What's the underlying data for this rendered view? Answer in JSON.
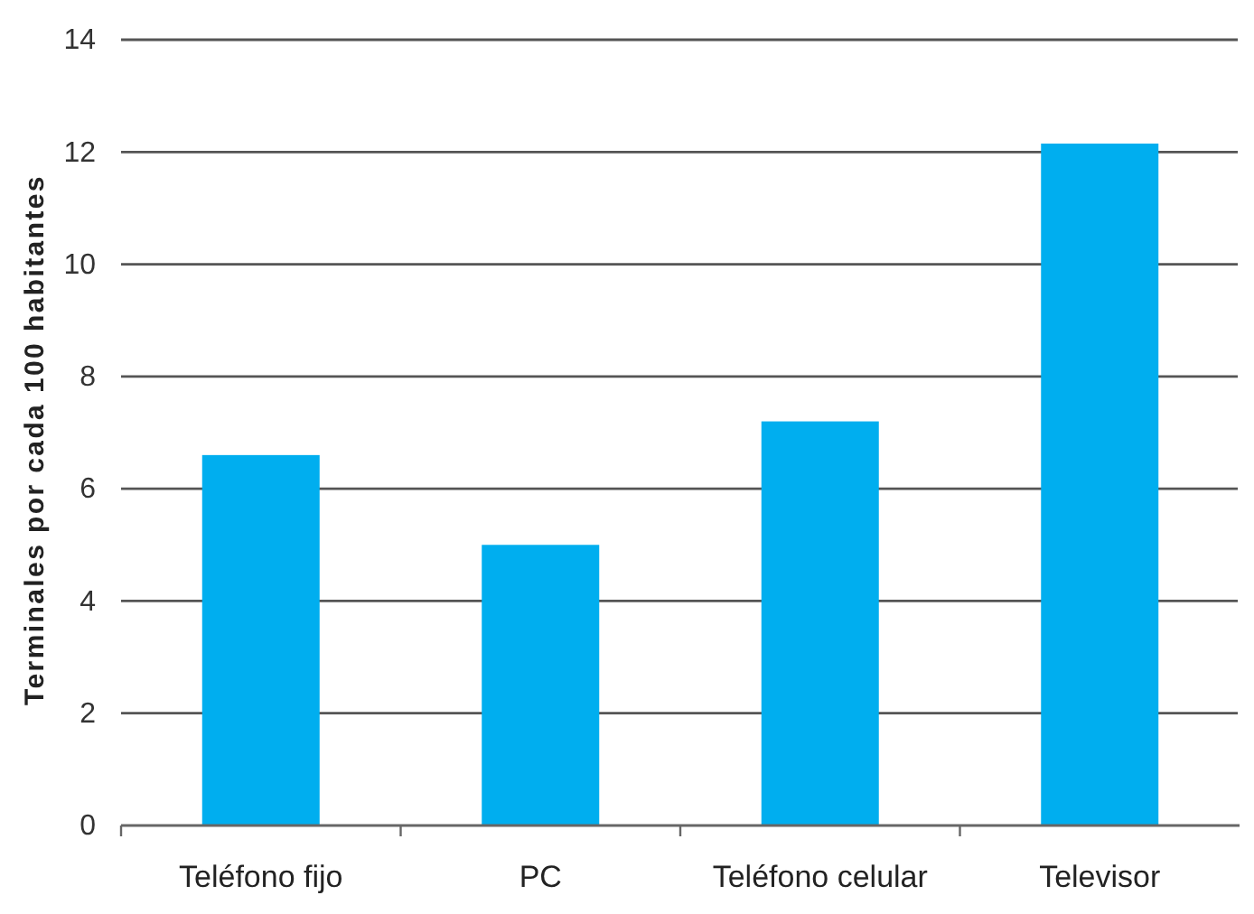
{
  "chart_data": {
    "type": "bar",
    "ylabel": "Terminales por cada 100 habitantes",
    "categories": [
      "Teléfono fijo",
      "PC",
      "Teléfono celular",
      "Televisor"
    ],
    "values": [
      6.6,
      5.0,
      7.2,
      12.15
    ],
    "color": "#00aeef",
    "ylim": [
      0,
      14
    ],
    "yticks": [
      0,
      2,
      4,
      6,
      8,
      10,
      12,
      14
    ],
    "grid": "y"
  }
}
